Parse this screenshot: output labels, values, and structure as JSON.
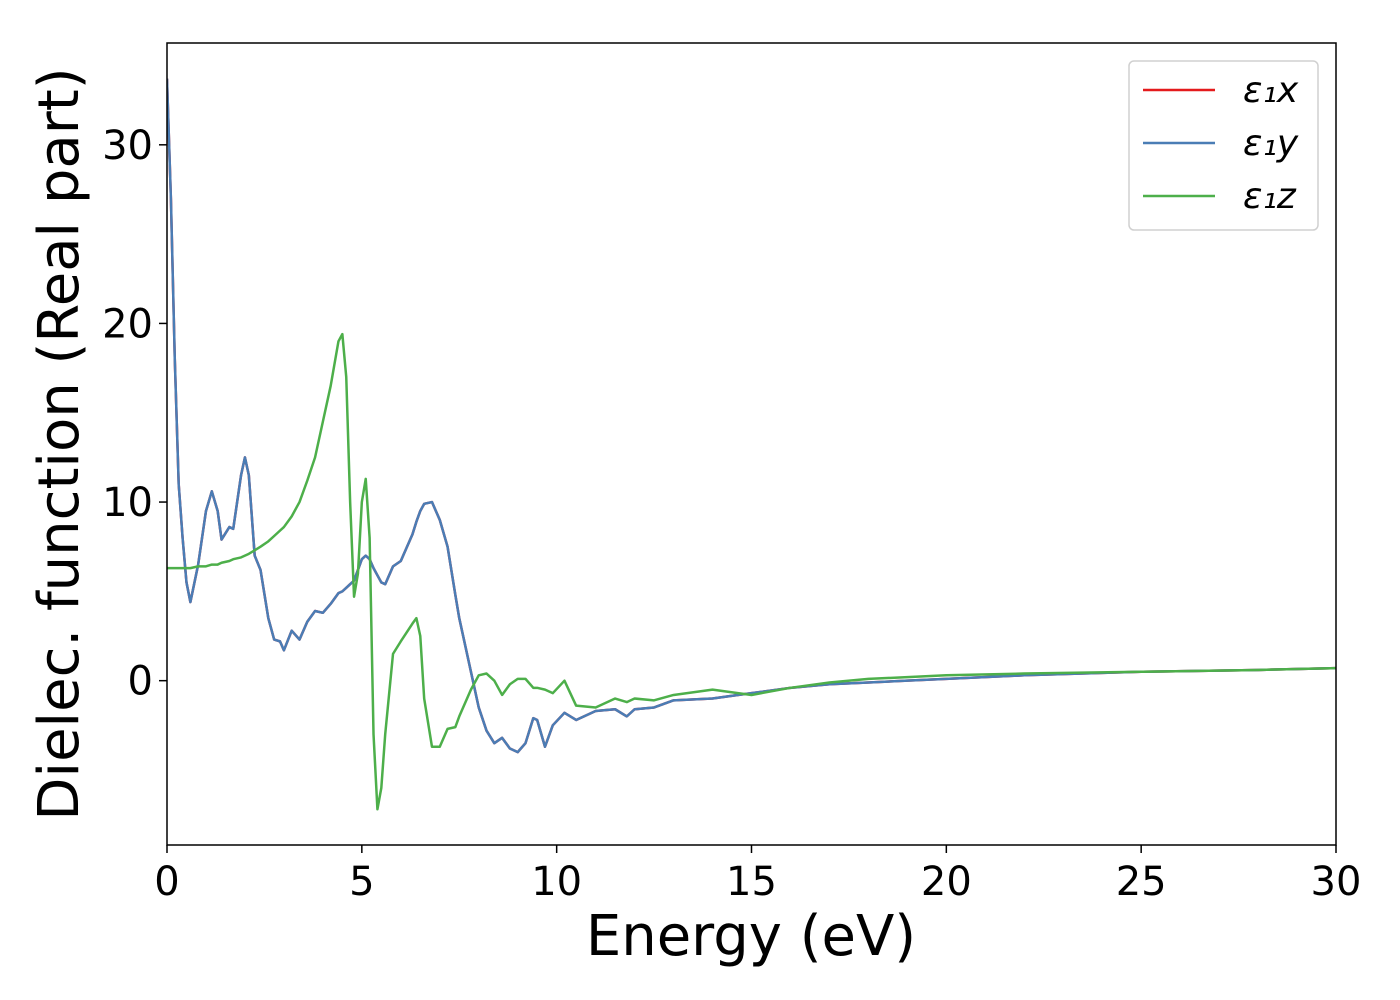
{
  "chart_data": {
    "type": "line",
    "xlabel": "Energy (eV)",
    "ylabel": "Dielec. function (Real part)",
    "x": [
      0,
      0.1,
      0.2,
      0.3,
      0.4,
      0.5,
      0.6,
      0.8,
      1.0,
      1.15,
      1.3,
      1.4,
      1.6,
      1.7,
      1.9,
      2.0,
      2.1,
      2.25,
      2.4,
      2.6,
      2.75,
      2.9,
      3.0,
      3.2,
      3.4,
      3.6,
      3.8,
      4.0,
      4.2,
      4.4,
      4.5,
      4.6,
      4.7,
      4.8,
      4.9,
      5.0,
      5.1,
      5.2,
      5.3,
      5.4,
      5.5,
      5.6,
      5.8,
      6.0,
      6.3,
      6.4,
      6.5,
      6.6,
      6.8,
      7.0,
      7.2,
      7.4,
      7.5,
      7.8,
      8.0,
      8.2,
      8.4,
      8.6,
      8.8,
      9.0,
      9.2,
      9.4,
      9.5,
      9.7,
      9.9,
      10.2,
      10.5,
      11.0,
      11.5,
      11.8,
      12.0,
      12.5,
      13,
      14,
      15,
      16,
      17,
      18,
      19,
      20,
      22,
      25,
      28,
      30
    ],
    "series": [
      {
        "name": "ε₁x",
        "color": "#e41a1c",
        "values": [
          33.7,
          27,
          18,
          11,
          8,
          5.5,
          4.4,
          6.5,
          9.5,
          10.6,
          9.5,
          7.9,
          8.6,
          8.5,
          11.5,
          12.5,
          11.5,
          7,
          6.2,
          3.5,
          2.3,
          2.2,
          1.7,
          2.8,
          2.3,
          3.3,
          3.9,
          3.8,
          4.3,
          4.9,
          5.0,
          5.2,
          5.4,
          5.6,
          6.2,
          6.8,
          7.0,
          6.8,
          6.3,
          5.9,
          5.5,
          5.4,
          6.4,
          6.7,
          8.2,
          8.9,
          9.5,
          9.9,
          10.0,
          9.0,
          7.5,
          4.8,
          3.5,
          0.5,
          -1.5,
          -2.8,
          -3.5,
          -3.2,
          -3.8,
          -4.0,
          -3.5,
          -2.1,
          -2.2,
          -3.7,
          -2.5,
          -1.8,
          -2.2,
          -1.7,
          -1.6,
          -2.0,
          -1.6,
          -1.5,
          -1.1,
          -1.0,
          -0.7,
          -0.4,
          -0.2,
          -0.1,
          0.0,
          0.1,
          0.3,
          0.5,
          0.6,
          0.7
        ]
      },
      {
        "name": "ε₁y",
        "color": "#4a7db5",
        "values": [
          33.7,
          27,
          18,
          11,
          8,
          5.5,
          4.4,
          6.5,
          9.5,
          10.6,
          9.5,
          7.9,
          8.6,
          8.5,
          11.5,
          12.5,
          11.5,
          7,
          6.2,
          3.5,
          2.3,
          2.2,
          1.7,
          2.8,
          2.3,
          3.3,
          3.9,
          3.8,
          4.3,
          4.9,
          5.0,
          5.2,
          5.4,
          5.6,
          6.2,
          6.8,
          7.0,
          6.8,
          6.3,
          5.9,
          5.5,
          5.4,
          6.4,
          6.7,
          8.2,
          8.9,
          9.5,
          9.9,
          10.0,
          9.0,
          7.5,
          4.8,
          3.5,
          0.5,
          -1.5,
          -2.8,
          -3.5,
          -3.2,
          -3.8,
          -4.0,
          -3.5,
          -2.1,
          -2.2,
          -3.7,
          -2.5,
          -1.8,
          -2.2,
          -1.7,
          -1.6,
          -2.0,
          -1.6,
          -1.5,
          -1.1,
          -1.0,
          -0.7,
          -0.4,
          -0.2,
          -0.1,
          0.0,
          0.1,
          0.3,
          0.5,
          0.6,
          0.7
        ]
      },
      {
        "name": "ε₁z",
        "color": "#4daf4a",
        "values": [
          6.3,
          6.3,
          6.3,
          6.3,
          6.3,
          6.3,
          6.3,
          6.4,
          6.4,
          6.5,
          6.5,
          6.6,
          6.7,
          6.8,
          6.9,
          7.0,
          7.1,
          7.3,
          7.5,
          7.8,
          8.1,
          8.4,
          8.6,
          9.2,
          10.0,
          11.2,
          12.5,
          14.5,
          16.5,
          19.0,
          19.4,
          17,
          10,
          4.7,
          6,
          10,
          11.3,
          8,
          -3,
          -7.2,
          -6,
          -3,
          1.5,
          2.2,
          3.2,
          3.5,
          2.5,
          -1,
          -3.7,
          -3.7,
          -2.7,
          -2.6,
          -2.0,
          -0.5,
          0.3,
          0.4,
          0.0,
          -0.8,
          -0.2,
          0.1,
          0.1,
          -0.4,
          -0.4,
          -0.5,
          -0.7,
          0.0,
          -1.4,
          -1.5,
          -1.0,
          -1.2,
          -1.0,
          -1.1,
          -0.8,
          -0.5,
          -0.8,
          -0.4,
          -0.1,
          0.1,
          0.2,
          0.3,
          0.4,
          0.5,
          0.6,
          0.7
        ]
      }
    ],
    "xlim": [
      0,
      30
    ],
    "xticks": [
      0,
      5,
      10,
      15,
      20,
      25,
      30
    ],
    "ylim": [
      -9.2,
      35.7
    ],
    "yticks": [
      0,
      10,
      20,
      30
    ],
    "grid": false,
    "legend": "upper right"
  }
}
